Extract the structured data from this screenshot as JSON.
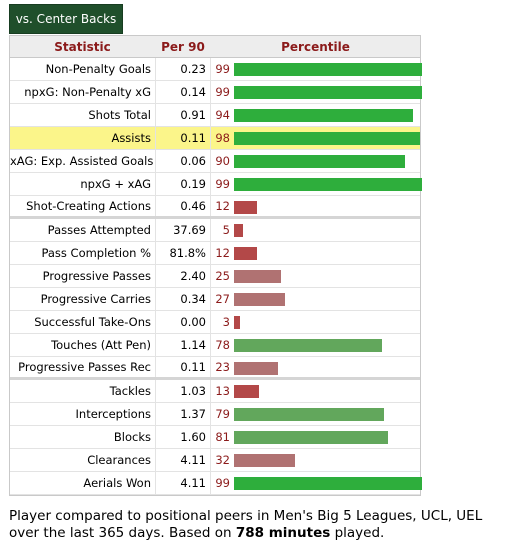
{
  "tab": {
    "label": "vs. Center Backs"
  },
  "headers": {
    "statistic": "Statistic",
    "per90": "Per 90",
    "percentile": "Percentile"
  },
  "rows": [
    {
      "stat": "Non-Penalty Goals",
      "per90": "0.23",
      "pct": "99",
      "pct_value": 99,
      "color": "#2eae3c",
      "highlight": false,
      "sep": false
    },
    {
      "stat": "npxG: Non-Penalty xG",
      "per90": "0.14",
      "pct": "99",
      "pct_value": 99,
      "color": "#2eae3c",
      "highlight": false,
      "sep": false
    },
    {
      "stat": "Shots Total",
      "per90": "0.91",
      "pct": "94",
      "pct_value": 94,
      "color": "#2eae3c",
      "highlight": false,
      "sep": false
    },
    {
      "stat": "Assists",
      "per90": "0.11",
      "pct": "98",
      "pct_value": 98,
      "color": "#2eae3c",
      "highlight": true,
      "sep": false
    },
    {
      "stat": "xAG: Exp. Assisted Goals",
      "per90": "0.06",
      "pct": "90",
      "pct_value": 90,
      "color": "#2eae3c",
      "highlight": false,
      "sep": false
    },
    {
      "stat": "npxG + xAG",
      "per90": "0.19",
      "pct": "99",
      "pct_value": 99,
      "color": "#2eae3c",
      "highlight": false,
      "sep": false
    },
    {
      "stat": "Shot-Creating Actions",
      "per90": "0.46",
      "pct": "12",
      "pct_value": 12,
      "color": "#b34848",
      "highlight": false,
      "sep": true
    },
    {
      "stat": "Passes Attempted",
      "per90": "37.69",
      "pct": "5",
      "pct_value": 5,
      "color": "#b34848",
      "highlight": false,
      "sep": false
    },
    {
      "stat": "Pass Completion %",
      "per90": "81.8%",
      "pct": "12",
      "pct_value": 12,
      "color": "#b34848",
      "highlight": false,
      "sep": false
    },
    {
      "stat": "Progressive Passes",
      "per90": "2.40",
      "pct": "25",
      "pct_value": 25,
      "color": "#b07272",
      "highlight": false,
      "sep": false
    },
    {
      "stat": "Progressive Carries",
      "per90": "0.34",
      "pct": "27",
      "pct_value": 27,
      "color": "#b07272",
      "highlight": false,
      "sep": false
    },
    {
      "stat": "Successful Take-Ons",
      "per90": "0.00",
      "pct": "3",
      "pct_value": 3,
      "color": "#b34848",
      "highlight": false,
      "sep": false
    },
    {
      "stat": "Touches (Att Pen)",
      "per90": "1.14",
      "pct": "78",
      "pct_value": 78,
      "color": "#62a75c",
      "highlight": false,
      "sep": false
    },
    {
      "stat": "Progressive Passes Rec",
      "per90": "0.11",
      "pct": "23",
      "pct_value": 23,
      "color": "#b07272",
      "highlight": false,
      "sep": true
    },
    {
      "stat": "Tackles",
      "per90": "1.03",
      "pct": "13",
      "pct_value": 13,
      "color": "#b34848",
      "highlight": false,
      "sep": false
    },
    {
      "stat": "Interceptions",
      "per90": "1.37",
      "pct": "79",
      "pct_value": 79,
      "color": "#62a75c",
      "highlight": false,
      "sep": false
    },
    {
      "stat": "Blocks",
      "per90": "1.60",
      "pct": "81",
      "pct_value": 81,
      "color": "#62a75c",
      "highlight": false,
      "sep": false
    },
    {
      "stat": "Clearances",
      "per90": "4.11",
      "pct": "32",
      "pct_value": 32,
      "color": "#b07272",
      "highlight": false,
      "sep": false
    },
    {
      "stat": "Aerials Won",
      "per90": "4.11",
      "pct": "99",
      "pct_value": 99,
      "color": "#2eae3c",
      "highlight": false,
      "sep": false
    }
  ],
  "footer": {
    "text_before": "Player compared to positional peers in Men's Big 5 Leagues, UCL, UEL over the last 365 days. Based on ",
    "minutes": "788 minutes",
    "text_after": " played."
  }
}
